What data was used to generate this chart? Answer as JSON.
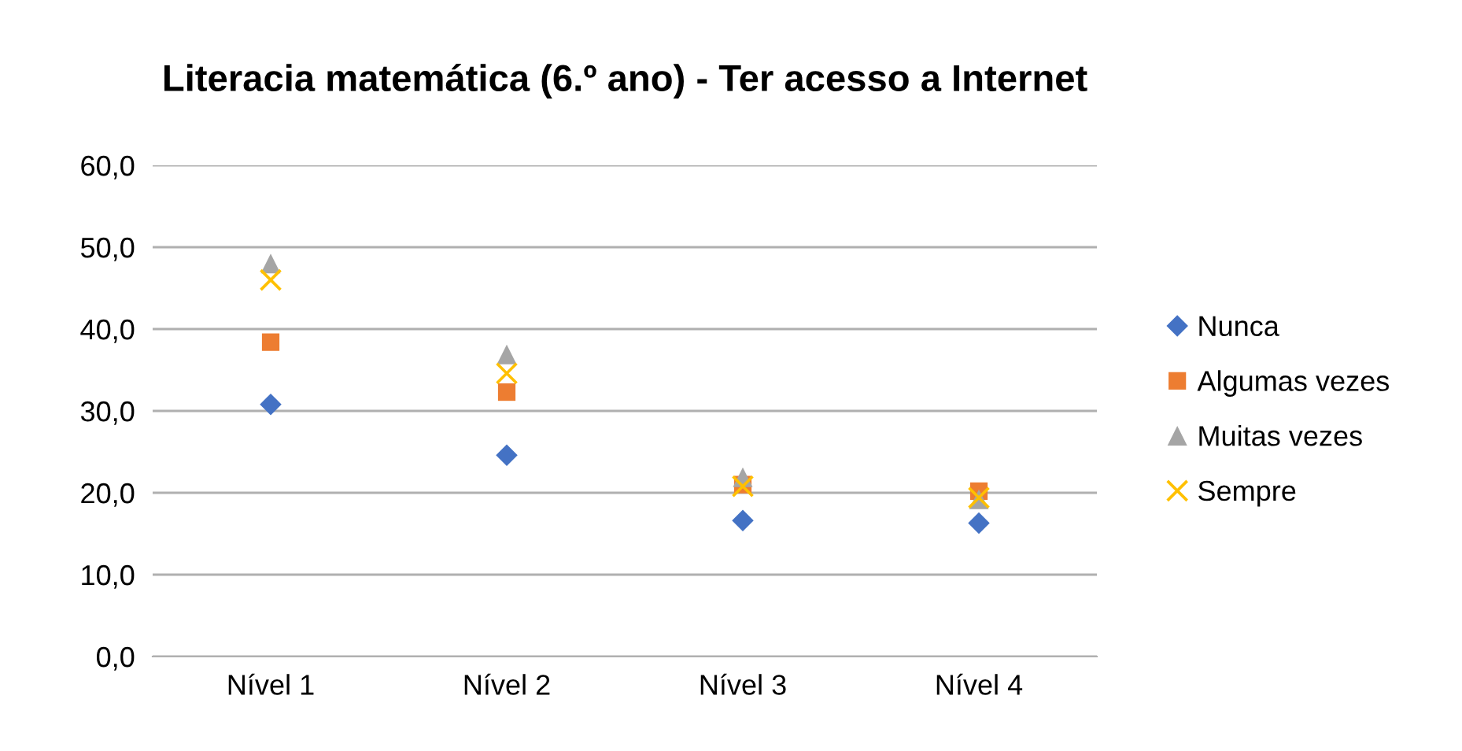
{
  "chart_data": {
    "type": "scatter",
    "title": "Literacia matemática (6.º ano) - Ter acesso a Internet",
    "categories": [
      "Nível 1",
      "Nível 2",
      "Nível 3",
      "Nível 4"
    ],
    "series": [
      {
        "name": "Nunca",
        "color": "#4472c4",
        "marker": "diamond",
        "values": [
          30.8,
          24.6,
          16.6,
          16.3
        ]
      },
      {
        "name": "Algumas vezes",
        "color": "#ed7d31",
        "marker": "square",
        "values": [
          38.4,
          32.3,
          21.0,
          20.2
        ]
      },
      {
        "name": "Muitas vezes",
        "color": "#a5a5a5",
        "marker": "triangle",
        "values": [
          48.0,
          36.9,
          21.9,
          19.2
        ]
      },
      {
        "name": "Sempre",
        "color": "#ffc000",
        "marker": "cross",
        "values": [
          46.0,
          34.6,
          20.8,
          19.4
        ]
      }
    ],
    "ylim": [
      0,
      60
    ],
    "yticks": [
      {
        "value": 0,
        "label": "0,0"
      },
      {
        "value": 10,
        "label": "10,0"
      },
      {
        "value": 20,
        "label": "20,0"
      },
      {
        "value": 30,
        "label": "30,0"
      },
      {
        "value": 40,
        "label": "40,0"
      },
      {
        "value": 50,
        "label": "50,0"
      },
      {
        "value": 60,
        "label": "60,0"
      }
    ],
    "grid": "y",
    "legend": "right"
  }
}
